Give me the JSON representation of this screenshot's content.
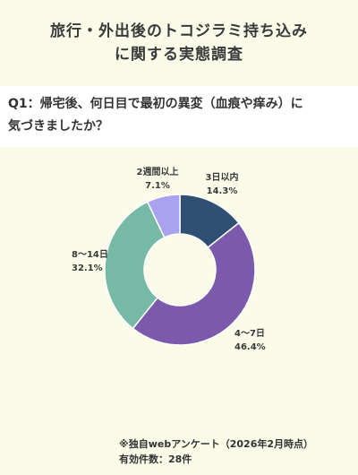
{
  "header": {
    "title_line1": "旅行・外出後のトコジラミ持ち込み",
    "title_line2": "に関する実態調査"
  },
  "question": {
    "line1": "Q1：帰宅後、何日目で最初の異変（血痕や痒み）に",
    "line2": "気づきましたか？"
  },
  "chart_data": {
    "type": "pie",
    "variant": "donut",
    "start": "12 o'clock",
    "direction": "clockwise",
    "slices": [
      {
        "label": "3日以内",
        "value": 14.3,
        "value_label": "14.3%",
        "color": "#2f4f73"
      },
      {
        "label": "4〜7日",
        "value": 46.4,
        "value_label": "46.4%",
        "color": "#7b5aac"
      },
      {
        "label": "8〜14日",
        "value": 32.1,
        "value_label": "32.1%",
        "color": "#76b9a4"
      },
      {
        "label": "2週間以上",
        "value": 7.1,
        "value_label": "7.1%",
        "color": "#a9a2ee"
      }
    ]
  },
  "footnote": {
    "line1": "※独自webアンケート（2026年2月時点）",
    "line2": "有効件数：28件"
  }
}
